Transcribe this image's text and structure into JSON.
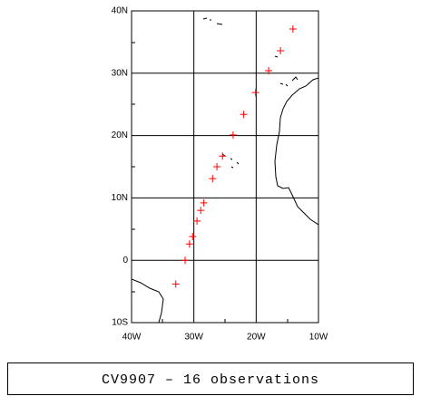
{
  "chart_data": {
    "type": "scatter",
    "caption": "CV9907 – 16 observations",
    "x": [
      -14.1,
      -16.1,
      -18.0,
      -20.1,
      -22.0,
      -23.7,
      -25.4,
      -26.3,
      -27.0,
      -28.4,
      -28.9,
      -29.5,
      -30.2,
      -30.7,
      -31.4,
      -32.9
    ],
    "series": [
      {
        "color": "#ff0000",
        "values": [
          37.1,
          33.6,
          30.4,
          26.9,
          23.4,
          20.1,
          16.7,
          15.0,
          13.1,
          9.2,
          8.0,
          6.3,
          3.8,
          2.6,
          0.0,
          -3.8
        ]
      }
    ],
    "xlim": [
      -40,
      -10
    ],
    "ylim": [
      -10,
      40
    ],
    "xticks": [
      {
        "value": -40,
        "label": "40W"
      },
      {
        "value": -30,
        "label": "30W"
      },
      {
        "value": -20,
        "label": "20W"
      },
      {
        "value": -10,
        "label": "10W"
      }
    ],
    "yticks": [
      {
        "value": -10,
        "label": "10S"
      },
      0,
      {
        "value": 10,
        "label": "10N"
      },
      {
        "value": 20,
        "label": "20N"
      },
      {
        "value": 30,
        "label": "30N"
      },
      {
        "value": 40,
        "label": "40N"
      }
    ],
    "grid": true
  }
}
